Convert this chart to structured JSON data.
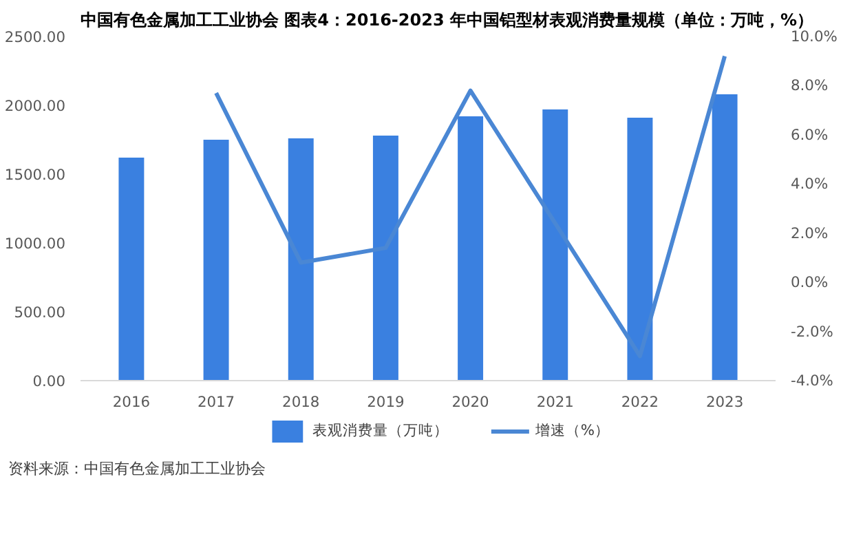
{
  "chart_data": {
    "type": "bar",
    "title": "中国有色金属加工工业协会  图表4：2016-2023 年中国铝型材表观消费量规模（单位：万吨，%）",
    "annotations": [
      "资料来源：中国有色金属加工工业协会"
    ],
    "categories": [
      "2016",
      "2017",
      "2018",
      "2019",
      "2020",
      "2021",
      "2022",
      "2023"
    ],
    "series": [
      {
        "name": "表观消费量（万吨）",
        "color": "#3a80e0",
        "values": [
          1620,
          1750,
          1760,
          1780,
          1920,
          1970,
          1910,
          2080
        ]
      },
      {
        "name": "增速（%）",
        "type": "line",
        "axis": "y2",
        "color": "#4a87d4",
        "values": [
          null,
          7.7,
          0.8,
          1.4,
          7.8,
          2.4,
          -3.0,
          9.2
        ]
      }
    ],
    "ylim": [
      0,
      2500
    ],
    "yticks": [
      {
        "value": 0,
        "label": "0.00"
      },
      {
        "value": 500,
        "label": "500.00"
      },
      {
        "value": 1000,
        "label": "1000.00"
      },
      {
        "value": 1500,
        "label": "1500.00"
      },
      {
        "value": 2000,
        "label": "2000.00"
      },
      {
        "value": 2500,
        "label": "2500.00"
      }
    ],
    "y2lim": [
      -4,
      10
    ],
    "y2ticks": [
      {
        "value": -4,
        "label": "-4.0%"
      },
      {
        "value": -2,
        "label": "-2.0%"
      },
      {
        "value": 0,
        "label": "0.0%"
      },
      {
        "value": 2,
        "label": "2.0%"
      },
      {
        "value": 4,
        "label": "4.0%"
      },
      {
        "value": 6,
        "label": "6.0%"
      },
      {
        "value": 8,
        "label": "8.0%"
      },
      {
        "value": 10,
        "label": "10.0%"
      }
    ],
    "grid": false,
    "legend": "bottom"
  }
}
